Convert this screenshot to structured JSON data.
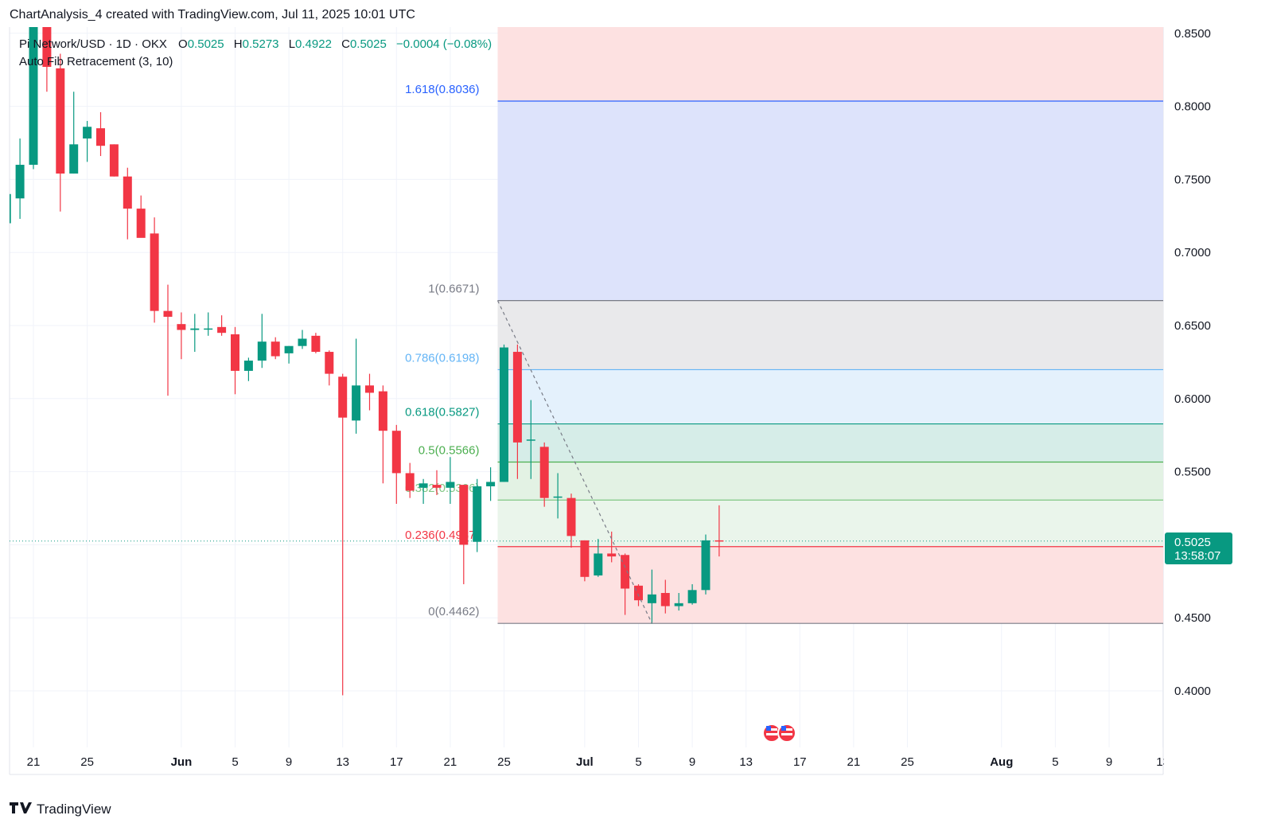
{
  "header": {
    "caption": "ChartAnalysis_4 created with TradingView.com, Jul 11, 2025 10:01 UTC"
  },
  "legend": {
    "symbol": "Pi Network/USD · 1D · OKX",
    "o_label": "O",
    "o_value": "0.5025",
    "h_label": "H",
    "h_value": "0.5273",
    "l_label": "L",
    "l_value": "0.4922",
    "c_label": "C",
    "c_value": "0.5025",
    "change": "−0.0004 (−0.08%)",
    "indicator": "Auto Fib Retracement (3, 10)"
  },
  "price_tag": {
    "price": "0.5025",
    "countdown": "13:58:07"
  },
  "footer": {
    "brand": "TradingView"
  },
  "colors": {
    "up": "#089981",
    "down": "#F23645",
    "tag": "#089981"
  },
  "chart_data": {
    "type": "candlestick",
    "ylim": [
      0.36,
      0.87
    ],
    "y_ticks": [
      "0.4000",
      "0.4500",
      "0.5000",
      "0.5500",
      "0.6000",
      "0.6500",
      "0.7000",
      "0.7500",
      "0.8000",
      "0.8500"
    ],
    "x_ticks": [
      {
        "label": "21",
        "day": 0
      },
      {
        "label": "25",
        "day": 4
      },
      {
        "label": "Jun",
        "day": 11
      },
      {
        "label": "5",
        "day": 15
      },
      {
        "label": "9",
        "day": 19
      },
      {
        "label": "13",
        "day": 23
      },
      {
        "label": "17",
        "day": 27
      },
      {
        "label": "21",
        "day": 31
      },
      {
        "label": "25",
        "day": 35
      },
      {
        "label": "Jul",
        "day": 41
      },
      {
        "label": "5",
        "day": 45
      },
      {
        "label": "9",
        "day": 49
      },
      {
        "label": "13",
        "day": 53
      },
      {
        "label": "17",
        "day": 57
      },
      {
        "label": "21",
        "day": 61
      },
      {
        "label": "25",
        "day": 65
      },
      {
        "label": "Aug",
        "day": 72
      },
      {
        "label": "5",
        "day": 76
      },
      {
        "label": "9",
        "day": 80
      },
      {
        "label": "13",
        "day": 84
      }
    ],
    "candles": [
      {
        "day": -2,
        "o": 0.72,
        "h": 0.755,
        "l": 0.708,
        "c": 0.74
      },
      {
        "day": -1,
        "o": 0.737,
        "h": 0.778,
        "l": 0.723,
        "c": 0.76
      },
      {
        "day": 0,
        "o": 0.76,
        "h": 0.865,
        "l": 0.757,
        "c": 0.86
      },
      {
        "day": 1,
        "o": 0.86,
        "h": 0.865,
        "l": 0.81,
        "c": 0.827
      },
      {
        "day": 2,
        "o": 0.826,
        "h": 0.836,
        "l": 0.728,
        "c": 0.754
      },
      {
        "day": 3,
        "o": 0.754,
        "h": 0.81,
        "l": 0.754,
        "c": 0.774
      },
      {
        "day": 4,
        "o": 0.778,
        "h": 0.79,
        "l": 0.762,
        "c": 0.786
      },
      {
        "day": 5,
        "o": 0.785,
        "h": 0.796,
        "l": 0.766,
        "c": 0.773
      },
      {
        "day": 6,
        "o": 0.774,
        "h": 0.774,
        "l": 0.752,
        "c": 0.752
      },
      {
        "day": 7,
        "o": 0.752,
        "h": 0.758,
        "l": 0.709,
        "c": 0.73
      },
      {
        "day": 8,
        "o": 0.73,
        "h": 0.739,
        "l": 0.713,
        "c": 0.71
      },
      {
        "day": 9,
        "o": 0.713,
        "h": 0.724,
        "l": 0.652,
        "c": 0.66
      },
      {
        "day": 10,
        "o": 0.66,
        "h": 0.678,
        "l": 0.602,
        "c": 0.656
      },
      {
        "day": 11,
        "o": 0.651,
        "h": 0.659,
        "l": 0.627,
        "c": 0.647
      },
      {
        "day": 12,
        "o": 0.647,
        "h": 0.658,
        "l": 0.632,
        "c": 0.648
      },
      {
        "day": 13,
        "o": 0.648,
        "h": 0.659,
        "l": 0.643,
        "c": 0.648
      },
      {
        "day": 14,
        "o": 0.649,
        "h": 0.657,
        "l": 0.643,
        "c": 0.645
      },
      {
        "day": 15,
        "o": 0.644,
        "h": 0.649,
        "l": 0.603,
        "c": 0.619
      },
      {
        "day": 16,
        "o": 0.619,
        "h": 0.628,
        "l": 0.612,
        "c": 0.626
      },
      {
        "day": 17,
        "o": 0.626,
        "h": 0.658,
        "l": 0.621,
        "c": 0.639
      },
      {
        "day": 18,
        "o": 0.639,
        "h": 0.642,
        "l": 0.627,
        "c": 0.629
      },
      {
        "day": 19,
        "o": 0.631,
        "h": 0.636,
        "l": 0.624,
        "c": 0.636
      },
      {
        "day": 20,
        "o": 0.636,
        "h": 0.647,
        "l": 0.634,
        "c": 0.641
      },
      {
        "day": 21,
        "o": 0.643,
        "h": 0.645,
        "l": 0.631,
        "c": 0.632
      },
      {
        "day": 22,
        "o": 0.632,
        "h": 0.633,
        "l": 0.609,
        "c": 0.617
      },
      {
        "day": 23,
        "o": 0.615,
        "h": 0.617,
        "l": 0.397,
        "c": 0.587
      },
      {
        "day": 24,
        "o": 0.585,
        "h": 0.641,
        "l": 0.576,
        "c": 0.609
      },
      {
        "day": 25,
        "o": 0.609,
        "h": 0.617,
        "l": 0.592,
        "c": 0.604
      },
      {
        "day": 26,
        "o": 0.605,
        "h": 0.609,
        "l": 0.542,
        "c": 0.578
      },
      {
        "day": 27,
        "o": 0.578,
        "h": 0.582,
        "l": 0.528,
        "c": 0.549
      },
      {
        "day": 28,
        "o": 0.549,
        "h": 0.556,
        "l": 0.532,
        "c": 0.537
      },
      {
        "day": 29,
        "o": 0.539,
        "h": 0.545,
        "l": 0.528,
        "c": 0.542
      },
      {
        "day": 30,
        "o": 0.541,
        "h": 0.551,
        "l": 0.534,
        "c": 0.539
      },
      {
        "day": 31,
        "o": 0.539,
        "h": 0.56,
        "l": 0.528,
        "c": 0.543
      },
      {
        "day": 32,
        "o": 0.541,
        "h": 0.541,
        "l": 0.473,
        "c": 0.5
      },
      {
        "day": 33,
        "o": 0.502,
        "h": 0.545,
        "l": 0.495,
        "c": 0.54
      },
      {
        "day": 34,
        "o": 0.54,
        "h": 0.553,
        "l": 0.53,
        "c": 0.543
      },
      {
        "day": 35,
        "o": 0.543,
        "h": 0.637,
        "l": 0.543,
        "c": 0.635
      },
      {
        "day": 36,
        "o": 0.632,
        "h": 0.637,
        "l": 0.545,
        "c": 0.57
      },
      {
        "day": 37,
        "o": 0.572,
        "h": 0.599,
        "l": 0.545,
        "c": 0.572
      },
      {
        "day": 38,
        "o": 0.567,
        "h": 0.57,
        "l": 0.526,
        "c": 0.532
      },
      {
        "day": 39,
        "o": 0.533,
        "h": 0.549,
        "l": 0.518,
        "c": 0.533
      },
      {
        "day": 40,
        "o": 0.532,
        "h": 0.535,
        "l": 0.498,
        "c": 0.506
      },
      {
        "day": 41,
        "o": 0.503,
        "h": 0.503,
        "l": 0.475,
        "c": 0.478
      },
      {
        "day": 42,
        "o": 0.479,
        "h": 0.504,
        "l": 0.478,
        "c": 0.494
      },
      {
        "day": 43,
        "o": 0.494,
        "h": 0.509,
        "l": 0.488,
        "c": 0.492
      },
      {
        "day": 44,
        "o": 0.493,
        "h": 0.494,
        "l": 0.452,
        "c": 0.47
      },
      {
        "day": 45,
        "o": 0.472,
        "h": 0.473,
        "l": 0.458,
        "c": 0.462
      },
      {
        "day": 46,
        "o": 0.46,
        "h": 0.483,
        "l": 0.446,
        "c": 0.466
      },
      {
        "day": 47,
        "o": 0.467,
        "h": 0.476,
        "l": 0.453,
        "c": 0.458
      },
      {
        "day": 48,
        "o": 0.458,
        "h": 0.467,
        "l": 0.455,
        "c": 0.46
      },
      {
        "day": 49,
        "o": 0.46,
        "h": 0.473,
        "l": 0.459,
        "c": 0.469
      },
      {
        "day": 50,
        "o": 0.469,
        "h": 0.507,
        "l": 0.466,
        "c": 0.503
      },
      {
        "day": 51,
        "o": 0.503,
        "h": 0.527,
        "l": 0.492,
        "c": 0.5025
      }
    ],
    "current_price": 0.5025,
    "fib": {
      "start_day": 35,
      "end_day": 85,
      "trend_from": {
        "day": 35,
        "price": 0.6671
      },
      "trend_to": {
        "day": 46,
        "price": 0.4462
      },
      "levels": [
        {
          "label": "1.618(0.8036)",
          "value": 0.8036,
          "color": "#2962FF",
          "fill": "#DDE3FB"
        },
        {
          "label": "1(0.6671)",
          "value": 0.6671,
          "color": "#787B86",
          "fill": "#E9E9EB"
        },
        {
          "label": "0.786(0.6198)",
          "value": 0.6198,
          "color": "#64B5F6",
          "fill": "#E4F1FC"
        },
        {
          "label": "0.618(0.5827)",
          "value": 0.5827,
          "color": "#089981",
          "fill": "#D6EDE8"
        },
        {
          "label": "0.5(0.5566)",
          "value": 0.5566,
          "color": "#4CAF50",
          "fill": "#E3F2E4"
        },
        {
          "label": "0.382(0.5306)",
          "value": 0.5306,
          "color": "#81C784",
          "fill": "#EAF5EB"
        },
        {
          "label": "0.236(0.4987)",
          "value": 0.4987,
          "color": "#F23645",
          "fill": "#FDE1E1"
        },
        {
          "label": "0(0.4462)",
          "value": 0.4462,
          "color": "#787B86",
          "fill": "#FDE1E1"
        }
      ],
      "top_zone_fill": "#FDE1E1"
    }
  }
}
